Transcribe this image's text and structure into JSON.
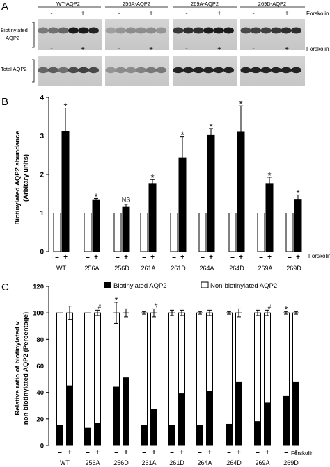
{
  "panel_a": {
    "letter": "A",
    "groups": [
      "WT-AQP2",
      "256A-AQP2",
      "269A-AQP2",
      "269D-AQP2"
    ],
    "row1_label": [
      "Biotinylated",
      "AQP2"
    ],
    "row2_label": "Total AQP2",
    "minus": "-",
    "plus": "+",
    "forskolin": "Forskolin"
  },
  "panel_b": {
    "letter": "B",
    "ylabel": [
      "Biotinylated AQP2 abundance",
      "(Arbitary units)"
    ],
    "forskolin": "Forskolin",
    "minus": "–",
    "plus": "+"
  },
  "panel_c": {
    "letter": "C",
    "legend_bio": "Biotinylated AQP2",
    "legend_nonbio": "Non-biotinylated AQP2",
    "ylabel": [
      "Relative ratio of biotinylated v",
      "non-biotinylated AQP2 (Percentage)"
    ],
    "forskolin": "Forskolin",
    "minus": "–",
    "plus": "+"
  },
  "chart_data": [
    {
      "type": "bar",
      "categories": [
        "WT",
        "256A",
        "256D",
        "261A",
        "261D",
        "264A",
        "264D",
        "269A",
        "269D"
      ],
      "series": [
        {
          "name": "-",
          "values": [
            1,
            1,
            1,
            1,
            1,
            1,
            1,
            1,
            1
          ]
        },
        {
          "name": "+",
          "values": [
            3.12,
            1.33,
            1.15,
            1.75,
            2.43,
            3.02,
            3.1,
            1.75,
            1.34
          ]
        }
      ],
      "errors_plus": [
        0.6,
        0.05,
        0.08,
        0.12,
        0.55,
        0.17,
        0.68,
        0.18,
        0.13
      ],
      "annotations": [
        "*",
        "*",
        "NS",
        "*",
        "*",
        "*",
        "*",
        "*",
        "*"
      ],
      "reference_line": 1,
      "yticks": [
        0,
        1,
        2,
        3,
        4
      ],
      "ylim": [
        0,
        4
      ],
      "title": "",
      "xlabel": "Forskolin",
      "ylabel": "Biotinylated AQP2 abundance (Arbitary units)"
    },
    {
      "type": "bar",
      "stacked": true,
      "categories": [
        "WT",
        "256A",
        "256D",
        "261A",
        "261D",
        "264A",
        "264D",
        "269A",
        "269D"
      ],
      "series": [
        {
          "name": "Biotinylated AQP2 -",
          "values": [
            15,
            13,
            44,
            15,
            15,
            15,
            16,
            18,
            37
          ]
        },
        {
          "name": "Biotinylated AQP2 +",
          "values": [
            45,
            17,
            51,
            27,
            39,
            41,
            48,
            32,
            48
          ]
        }
      ],
      "total": 100,
      "errors_minus": [
        0,
        0,
        8,
        1,
        2,
        1,
        1,
        2,
        1
      ],
      "errors_plus": [
        5,
        2,
        3,
        3,
        2,
        2,
        3,
        2,
        1
      ],
      "annotations_minus": [
        "",
        "",
        "*",
        "",
        "",
        "",
        "",
        "",
        "*"
      ],
      "annotations_plus": [
        "",
        "#",
        "",
        "#",
        "",
        "",
        "",
        "#",
        ""
      ],
      "yticks": [
        0,
        20,
        40,
        60,
        80,
        100,
        120
      ],
      "ylim": [
        0,
        120
      ],
      "title": "",
      "xlabel": "Forskolin",
      "ylabel": "Relative ratio of biotinylated v non-biotinylated AQP2 (Percentage)"
    }
  ]
}
